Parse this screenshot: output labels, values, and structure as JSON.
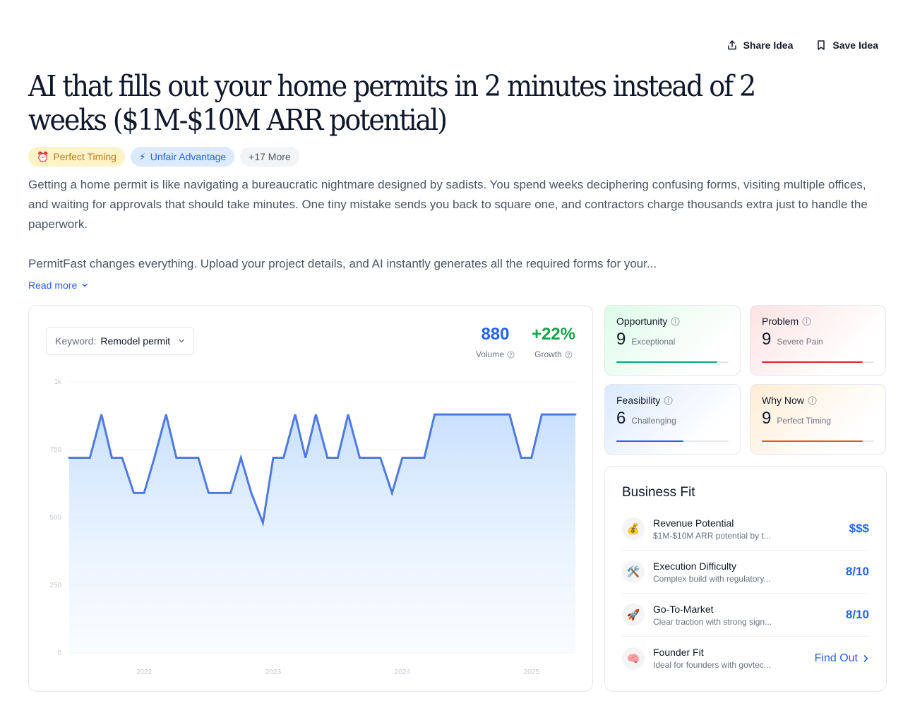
{
  "header": {
    "share_label": "Share Idea",
    "save_label": "Save Idea",
    "title": "AI that fills out your home permits in 2 minutes instead of 2 weeks ($1M-$10M ARR potential)"
  },
  "tags": [
    {
      "icon": "alarm-clock-icon",
      "label": "Perfect Timing"
    },
    {
      "icon": "lightning-icon",
      "label": "Unfair Advantage"
    },
    {
      "label": "+17 More"
    }
  ],
  "description": {
    "paragraph1": "Getting a home permit is like navigating a bureaucratic nightmare designed by sadists. You spend weeks deciphering confusing forms, visiting multiple offices, and waiting for approvals that should take minutes. One tiny mistake sends you back to square one, and contractors charge thousands extra just to handle the paperwork.",
    "paragraph2": "PermitFast changes everything. Upload your project details, and AI instantly generates all the required forms for your...",
    "read_more": "Read more"
  },
  "trend": {
    "keyword_label": "Keyword:",
    "keyword_value": "Remodel permit",
    "volume_value": "880",
    "volume_label": "Volume",
    "growth_value": "+22%",
    "growth_label": "Growth"
  },
  "chart_data": {
    "type": "area",
    "ylim": [
      0,
      1000
    ],
    "y_ticks": [
      "0",
      "250",
      "500",
      "750",
      "1k"
    ],
    "x_ticks": [
      "2022",
      "2023",
      "2024",
      "2025"
    ],
    "x_range": [
      2021.42,
      2025.34
    ],
    "series": [
      {
        "color": "#4f7ae0",
        "x": [
          2021.42,
          2021.58,
          2021.67,
          2021.75,
          2021.83,
          2021.92,
          2022.0,
          2022.08,
          2022.17,
          2022.25,
          2022.33,
          2022.42,
          2022.5,
          2022.58,
          2022.67,
          2022.75,
          2022.83,
          2022.92,
          2023.0,
          2023.08,
          2023.17,
          2023.25,
          2023.33,
          2023.42,
          2023.5,
          2023.58,
          2023.67,
          2023.75,
          2023.83,
          2023.92,
          2024.0,
          2024.08,
          2024.17,
          2024.25,
          2024.33,
          2024.42,
          2024.5,
          2024.58,
          2024.67,
          2024.75,
          2024.83,
          2024.92,
          2025.0,
          2025.08,
          2025.17,
          2025.25,
          2025.34
        ],
        "values": [
          720,
          720,
          880,
          720,
          720,
          590,
          590,
          720,
          880,
          720,
          720,
          720,
          590,
          590,
          590,
          720,
          590,
          480,
          720,
          720,
          880,
          720,
          880,
          720,
          720,
          880,
          720,
          720,
          720,
          590,
          720,
          720,
          720,
          880,
          880,
          880,
          880,
          880,
          880,
          880,
          880,
          720,
          720,
          880,
          880,
          880,
          880
        ]
      }
    ]
  },
  "scores": {
    "opportunity": {
      "title": "Opportunity",
      "value": "9",
      "label": "Exceptional",
      "fill": 0.9,
      "color": "#10a37f"
    },
    "problem": {
      "title": "Problem",
      "value": "9",
      "label": "Severe Pain",
      "fill": 0.9,
      "color": "#dc2626"
    },
    "feasibility": {
      "title": "Feasibility",
      "value": "6",
      "label": "Challenging",
      "fill": 0.6,
      "color": "#2563eb"
    },
    "why_now": {
      "title": "Why Now",
      "value": "9",
      "label": "Perfect Timing",
      "fill": 0.9,
      "color": "#ea580c"
    }
  },
  "business_fit": {
    "title": "Business Fit",
    "rows": [
      {
        "icon": "money-bag-icon",
        "name": "Revenue Potential",
        "sub": "$1M-$10M ARR potential by t...",
        "value": "$$$"
      },
      {
        "icon": "tools-icon",
        "name": "Execution Difficulty",
        "sub": "Complex build with regulatory...",
        "value": "8/10"
      },
      {
        "icon": "rocket-icon",
        "name": "Go-To-Market",
        "sub": "Clear traction with strong sign...",
        "value": "8/10"
      },
      {
        "icon": "brain-icon",
        "name": "Founder Fit",
        "sub": "Ideal for founders with govtec...",
        "value": "Find Out"
      }
    ]
  }
}
